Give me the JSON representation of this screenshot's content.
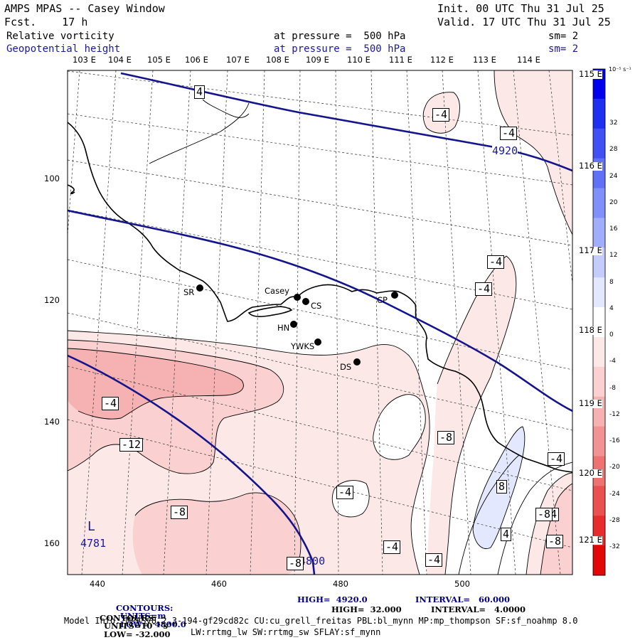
{
  "header": {
    "model": "AMPS MPAS -- Casey Window",
    "init": "Init. 00 UTC Thu 31 Jul 25",
    "forecast": "Fcst.    17 h",
    "valid": "Valid. 17 UTC Thu 31 Jul 25",
    "field1": {
      "name": "Relative vorticity",
      "pressure": "at pressure =  500 hPa",
      "sm": "sm= 2"
    },
    "field2": {
      "name": "Geopotential height",
      "pressure": "at pressure =  500 hPa",
      "sm": "sm= 2"
    }
  },
  "lon_top_labels": [
    "103 E",
    "104 E",
    "105 E",
    "106 E",
    "107 E",
    "108 E",
    "109 E",
    "110 E",
    "111 E",
    "112 E",
    "113 E",
    "114 E"
  ],
  "lon_right_labels": [
    "115 E",
    "116 E",
    "117 E",
    "118 E",
    "119 E",
    "120 E",
    "121 E"
  ],
  "y_ticks": [
    "100",
    "120",
    "140",
    "160"
  ],
  "x_ticks": [
    "440",
    "460",
    "480",
    "500"
  ],
  "stations": [
    {
      "name": "SR"
    },
    {
      "name": "Casey"
    },
    {
      "name": "CS"
    },
    {
      "name": "CP"
    },
    {
      "name": "HN"
    },
    {
      "name": "YWKS"
    },
    {
      "name": "DS"
    }
  ],
  "height_contour_labels": [
    "4920",
    "4800"
  ],
  "low_center": {
    "symbol": "L",
    "value": "4781"
  },
  "vorticity_contour_labels": [
    "4",
    "-4",
    "-4",
    "-4",
    "-4",
    "-4",
    "-12",
    "-8",
    "-4",
    "-4",
    "-8",
    "-8",
    "-4",
    "-4",
    "-4",
    "8",
    "4",
    "-8",
    "-8"
  ],
  "colorbar": {
    "unit": "10⁻⁵ s⁻¹",
    "labels": [
      "32",
      "28",
      "24",
      "20",
      "16",
      "12",
      "8",
      "4",
      "0",
      "-4",
      "-8",
      "-12",
      "-16",
      "-20",
      "-24",
      "-28",
      "-32"
    ],
    "colors": [
      "#0000ee",
      "#1f2ff2",
      "#4050f5",
      "#6070f7",
      "#8090f9",
      "#a0aefb",
      "#c4ccfc",
      "#e4e8fe",
      "#ffffff",
      "#fde8e8",
      "#fad0d0",
      "#f6b2b2",
      "#f29393",
      "#ee7272",
      "#ea5050",
      "#e62c2c",
      "#e20808"
    ]
  },
  "footer": {
    "height_contours": {
      "prefix": "CONTOURS:",
      "units": "UNITS=m",
      "low": "LOW=  4800.0",
      "high": "HIGH=  4920.0",
      "interval": "INTERVAL=   60.000"
    },
    "vort_contours": {
      "prefix": "CONTOURS:",
      "units": "UNITS=10⁻⁵ s⁻¹",
      "low": "LOW= -32.000",
      "high": "HIGH=  32.000",
      "interval": "INTERVAL=   4.0000"
    },
    "model_info": "Model Info: MPASv8.2.3-194-gf29cd82c CU:cu_grell_freitas PBL:bl_mynn MP:mp_thompson SF:sf_noahmp 8.0",
    "model_info2": "LW:rrtmg_lw SW:rrtmg_sw SFLAY:sf_mynn"
  },
  "colors": {
    "height_contour": "#14148c",
    "field2_text": "#1a1a9a",
    "footer_title": "#000080"
  }
}
